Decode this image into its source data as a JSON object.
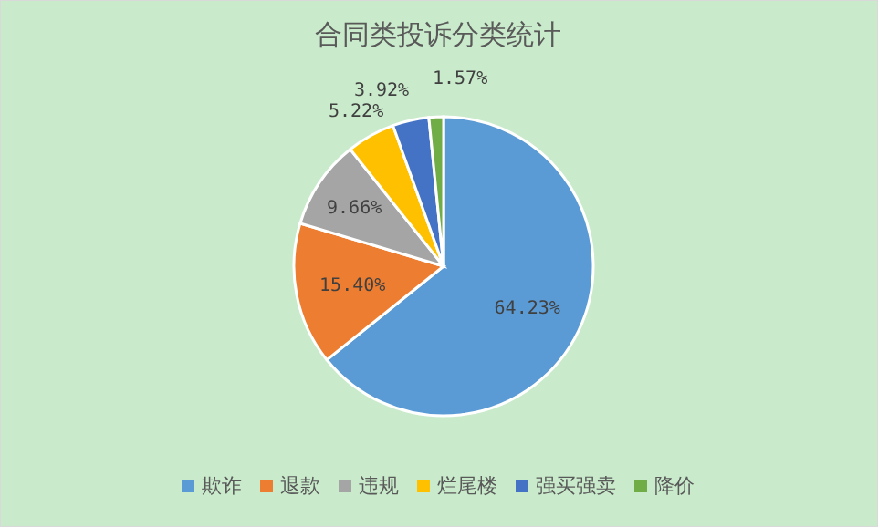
{
  "chart_data": {
    "type": "pie",
    "title": "合同类投诉分类统计",
    "categories": [
      "欺诈",
      "退款",
      "违规",
      "烂尾楼",
      "强买强卖",
      "降价"
    ],
    "values": [
      64.23,
      15.4,
      9.66,
      5.22,
      3.92,
      1.57
    ],
    "value_labels": [
      "64.23%",
      "15.40%",
      "9.66%",
      "5.22%",
      "3.92%",
      "1.57%"
    ],
    "colors": [
      "#5b9bd5",
      "#ed7d31",
      "#a5a5a5",
      "#ffc000",
      "#4472c4",
      "#70ad47"
    ],
    "legend": "bottom"
  }
}
